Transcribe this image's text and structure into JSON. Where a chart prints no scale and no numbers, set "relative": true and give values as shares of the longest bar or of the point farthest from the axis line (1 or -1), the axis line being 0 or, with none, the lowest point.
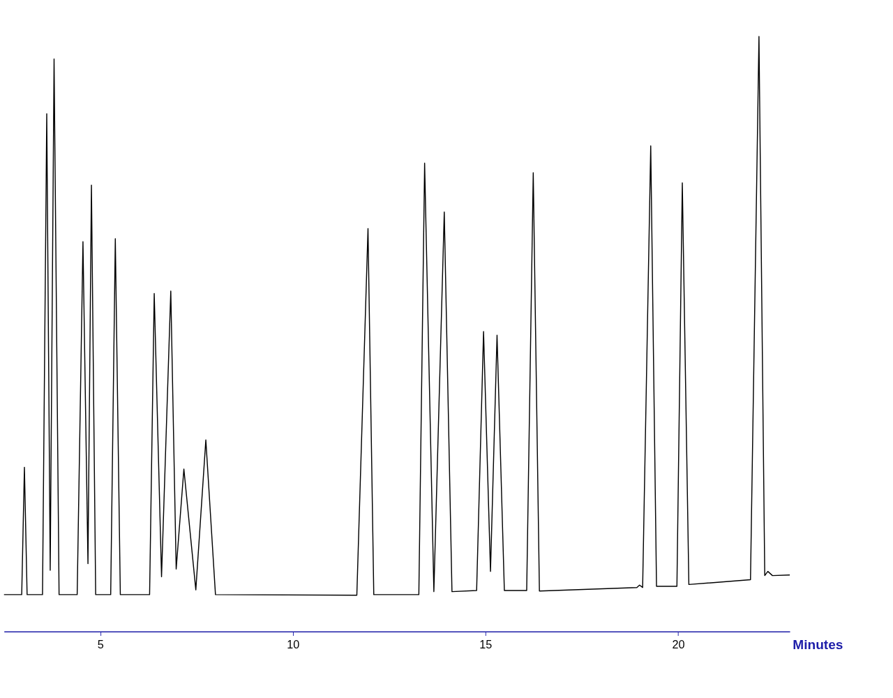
{
  "chart_data": {
    "type": "line",
    "relative": true,
    "xlabel": "Minutes",
    "xlim": [
      2.5,
      22.9
    ],
    "xticks": [
      5,
      10,
      15,
      20
    ],
    "grid": false,
    "marker": "none",
    "line_style": "solid",
    "tick_labels": "x",
    "series": [
      {
        "color": "#000000",
        "x": [
          2.5,
          2.96,
          3.03,
          3.1,
          3.5,
          3.61,
          3.7,
          3.8,
          3.93,
          4.4,
          4.55,
          4.68,
          4.77,
          4.88,
          5.27,
          5.39,
          5.52,
          6.28,
          6.4,
          6.59,
          6.83,
          6.97,
          7.17,
          7.48,
          7.74,
          7.99,
          11.66,
          11.95,
          12.1,
          13.27,
          13.42,
          13.66,
          13.93,
          14.13,
          14.77,
          14.95,
          15.13,
          15.3,
          15.49,
          16.07,
          16.24,
          16.4,
          18.93,
          19.0,
          19.08,
          19.29,
          19.44,
          19.97,
          20.11,
          20.28,
          21.88,
          22.1,
          22.25,
          22.33,
          22.45,
          22.9
        ],
        "values": [
          0.062,
          0.062,
          0.276,
          0.062,
          0.062,
          0.87,
          0.103,
          0.962,
          0.062,
          0.062,
          0.655,
          0.114,
          0.75,
          0.062,
          0.062,
          0.66,
          0.062,
          0.062,
          0.568,
          0.092,
          0.572,
          0.105,
          0.273,
          0.07,
          0.322,
          0.062,
          0.061,
          0.677,
          0.062,
          0.062,
          0.787,
          0.067,
          0.705,
          0.067,
          0.069,
          0.504,
          0.101,
          0.498,
          0.069,
          0.069,
          0.771,
          0.068,
          0.074,
          0.078,
          0.074,
          0.816,
          0.076,
          0.076,
          0.754,
          0.079,
          0.087,
          1.0,
          0.094,
          0.101,
          0.094,
          0.095
        ]
      }
    ]
  }
}
